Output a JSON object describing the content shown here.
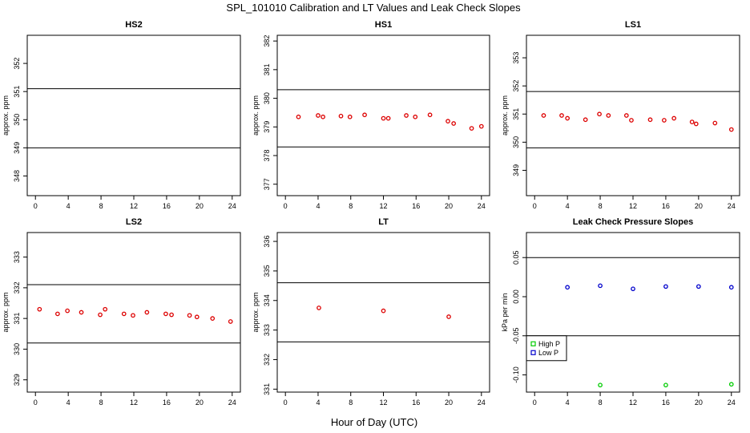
{
  "title": "SPL_101010  Calibration and LT Values and Leak Check Slopes",
  "common_xlabel": "Hour of Day (UTC)",
  "chart_data": [
    {
      "id": "hs2",
      "type": "scatter",
      "title": "HS2",
      "ylabel": "approx. ppm",
      "xlim": [
        -1,
        25
      ],
      "ylim": [
        347.3,
        353.0
      ],
      "xticks": [
        0,
        4,
        8,
        12,
        16,
        20,
        24
      ],
      "yticks": [
        348,
        349,
        350,
        351,
        352
      ],
      "hlines": [
        349.0,
        351.1
      ],
      "series": [
        {
          "color": "#dd0000",
          "x": [],
          "y": []
        }
      ]
    },
    {
      "id": "hs1",
      "type": "scatter",
      "title": "HS1",
      "ylabel": "approx. ppm",
      "xlim": [
        -1,
        25
      ],
      "ylim": [
        376.6,
        382.2
      ],
      "xticks": [
        0,
        4,
        8,
        12,
        16,
        20,
        24
      ],
      "yticks": [
        377,
        378,
        379,
        380,
        381,
        382
      ],
      "hlines": [
        378.3,
        380.3
      ],
      "series": [
        {
          "color": "#dd0000",
          "x": [
            1.6,
            4.0,
            4.6,
            6.8,
            7.9,
            9.7,
            12.0,
            12.6,
            14.8,
            15.9,
            17.7,
            19.9,
            20.6,
            22.8,
            24.0
          ],
          "y": [
            379.35,
            379.4,
            379.35,
            379.38,
            379.35,
            379.42,
            379.3,
            379.3,
            379.4,
            379.35,
            379.42,
            379.2,
            379.12,
            378.95,
            379.02
          ]
        }
      ]
    },
    {
      "id": "ls1",
      "type": "scatter",
      "title": "LS1",
      "ylabel": "approx. ppm",
      "xlim": [
        -1,
        25
      ],
      "ylim": [
        348.1,
        353.8
      ],
      "xticks": [
        0,
        4,
        8,
        12,
        16,
        20,
        24
      ],
      "yticks": [
        349,
        350,
        351,
        352,
        353
      ],
      "hlines": [
        349.8,
        351.8
      ],
      "series": [
        {
          "color": "#dd0000",
          "x": [
            1.1,
            3.3,
            4.0,
            6.2,
            7.9,
            9.0,
            11.2,
            11.8,
            14.1,
            15.8,
            17.0,
            19.2,
            19.7,
            22.0,
            24.0
          ],
          "y": [
            350.95,
            350.95,
            350.85,
            350.8,
            351.0,
            350.95,
            350.95,
            350.78,
            350.8,
            350.78,
            350.85,
            350.72,
            350.65,
            350.68,
            350.45
          ]
        }
      ]
    },
    {
      "id": "ls2",
      "type": "scatter",
      "title": "LS2",
      "ylabel": "approx. ppm",
      "xlim": [
        -1,
        25
      ],
      "ylim": [
        328.6,
        333.8
      ],
      "xticks": [
        0,
        4,
        8,
        12,
        16,
        20,
        24
      ],
      "yticks": [
        329,
        330,
        331,
        332,
        333
      ],
      "hlines": [
        330.2,
        332.1
      ],
      "series": [
        {
          "color": "#dd0000",
          "x": [
            0.5,
            2.7,
            3.9,
            5.6,
            7.9,
            8.5,
            10.8,
            11.9,
            13.6,
            15.9,
            16.6,
            18.8,
            19.7,
            21.6,
            23.8
          ],
          "y": [
            331.3,
            331.15,
            331.25,
            331.2,
            331.12,
            331.3,
            331.15,
            331.1,
            331.2,
            331.15,
            331.12,
            331.1,
            331.05,
            331.0,
            330.9
          ]
        }
      ]
    },
    {
      "id": "lt",
      "type": "scatter",
      "title": "LT",
      "ylabel": "approx. ppm",
      "xlim": [
        -1,
        25
      ],
      "ylim": [
        330.9,
        336.3
      ],
      "xticks": [
        0,
        4,
        8,
        12,
        16,
        20,
        24
      ],
      "yticks": [
        331,
        332,
        333,
        334,
        335,
        336
      ],
      "hlines": [
        332.6,
        334.6
      ],
      "series": [
        {
          "color": "#dd0000",
          "x": [
            4.1,
            12.0,
            20.0
          ],
          "y": [
            333.75,
            333.65,
            333.45
          ]
        }
      ]
    },
    {
      "id": "leak",
      "type": "scatter",
      "title": "Leak Check Pressure Slopes",
      "ylabel": "kPa per min",
      "xlim": [
        -1,
        25
      ],
      "ylim": [
        -0.122,
        0.082
      ],
      "xticks": [
        0,
        4,
        8,
        12,
        16,
        20,
        24
      ],
      "yticks": [
        -0.1,
        -0.05,
        0.0,
        0.05
      ],
      "ytick_labels": [
        "-0.10",
        "-0.05",
        "0.00",
        "0.05"
      ],
      "hlines": [
        -0.05,
        0.05
      ],
      "legend": {
        "position": "left",
        "entries": [
          "High P",
          "Low P"
        ]
      },
      "series": [
        {
          "name": "High P",
          "color": "#00cc00",
          "x": [
            8,
            16,
            24
          ],
          "y": [
            -0.113,
            -0.113,
            -0.112
          ]
        },
        {
          "name": "Low P",
          "color": "#0000cc",
          "x": [
            4,
            8,
            12,
            16,
            20,
            24
          ],
          "y": [
            0.012,
            0.014,
            0.01,
            0.013,
            0.013,
            0.012
          ]
        }
      ]
    }
  ]
}
